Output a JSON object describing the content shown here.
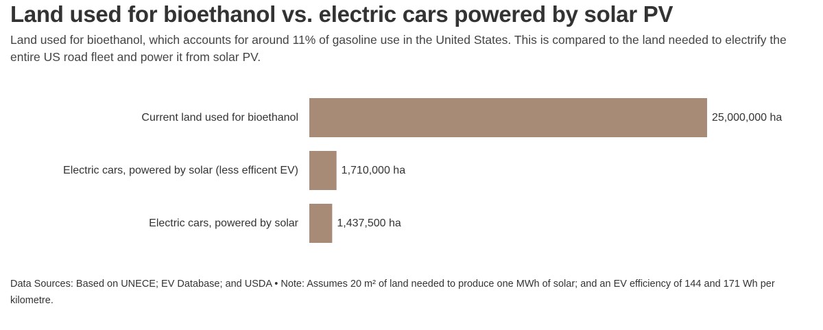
{
  "chart_data": {
    "type": "bar",
    "orientation": "horizontal",
    "title": "Land used for bioethanol vs. electric cars powered by solar PV",
    "subtitle": "Land used for bioethanol, which accounts for around 11% of gasoline use in the United States. This is compared to the land needed to electrify the entire US road fleet and power it from solar PV.",
    "categories": [
      "Current land used for bioethanol",
      "Electric cars, powered by solar (less efficent EV)",
      "Electric cars, powered by solar"
    ],
    "values": [
      25000000,
      1710000,
      1437500
    ],
    "value_labels": [
      "25,000,000 ha",
      "1,710,000 ha",
      "1,437,500 ha"
    ],
    "unit": "ha",
    "xlim": [
      0,
      25000000
    ],
    "grid": false,
    "bar_color": "#a78b76",
    "footer": "Data Sources: Based on UNECE; EV Database; and USDA • Note: Assumes 20 m² of land needed to produce one MWh of solar; and an EV efficiency of 144 and 171 Wh per kilometre."
  }
}
